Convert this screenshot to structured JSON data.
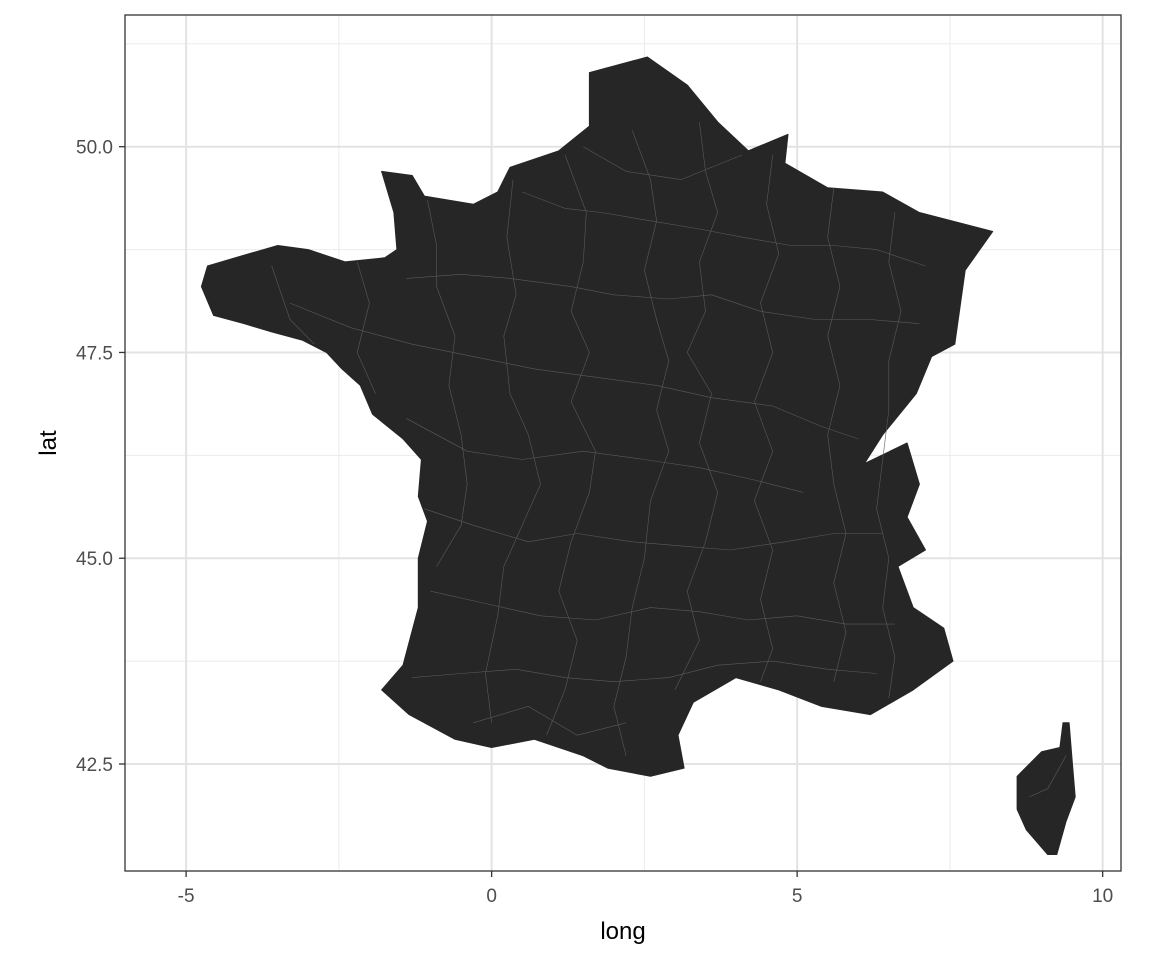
{
  "chart_data": {
    "type": "map",
    "region": "France (departments)",
    "xlabel": "long",
    "ylabel": "lat",
    "xlim": [
      -6.0,
      10.3
    ],
    "ylim": [
      41.2,
      51.6
    ],
    "x_ticks": [
      {
        "value": -5,
        "label": "-5"
      },
      {
        "value": 0,
        "label": "0"
      },
      {
        "value": 5,
        "label": "5"
      },
      {
        "value": 10,
        "label": "10"
      }
    ],
    "y_ticks": [
      {
        "value": 42.5,
        "label": "42.5"
      },
      {
        "value": 45.0,
        "label": "45.0"
      },
      {
        "value": 47.5,
        "label": "47.5"
      },
      {
        "value": 50.0,
        "label": "50.0"
      }
    ],
    "minor_x": [
      -2.5,
      2.5,
      7.5
    ],
    "minor_y": [
      43.75,
      46.25,
      48.75,
      51.25
    ],
    "grid": true,
    "fill_color": "#262626",
    "border_color": "#5a5a5a",
    "outline": [
      [
        2.55,
        51.09
      ],
      [
        3.2,
        50.75
      ],
      [
        3.7,
        50.3
      ],
      [
        4.2,
        49.95
      ],
      [
        4.85,
        50.15
      ],
      [
        4.8,
        49.8
      ],
      [
        5.5,
        49.5
      ],
      [
        6.4,
        49.45
      ],
      [
        7.0,
        49.2
      ],
      [
        8.2,
        48.97
      ],
      [
        7.75,
        48.5
      ],
      [
        7.58,
        47.6
      ],
      [
        7.2,
        47.45
      ],
      [
        6.95,
        47.0
      ],
      [
        6.4,
        46.5
      ],
      [
        6.1,
        46.15
      ],
      [
        6.8,
        46.4
      ],
      [
        7.0,
        45.9
      ],
      [
        6.8,
        45.5
      ],
      [
        7.1,
        45.1
      ],
      [
        6.65,
        44.9
      ],
      [
        6.9,
        44.4
      ],
      [
        7.4,
        44.15
      ],
      [
        7.55,
        43.75
      ],
      [
        6.9,
        43.4
      ],
      [
        6.2,
        43.1
      ],
      [
        5.4,
        43.2
      ],
      [
        4.7,
        43.4
      ],
      [
        4.0,
        43.55
      ],
      [
        3.3,
        43.25
      ],
      [
        3.05,
        42.85
      ],
      [
        3.15,
        42.45
      ],
      [
        2.6,
        42.35
      ],
      [
        1.9,
        42.45
      ],
      [
        1.5,
        42.6
      ],
      [
        0.7,
        42.8
      ],
      [
        0.0,
        42.7
      ],
      [
        -0.6,
        42.8
      ],
      [
        -1.35,
        43.1
      ],
      [
        -1.8,
        43.4
      ],
      [
        -1.45,
        43.7
      ],
      [
        -1.2,
        44.4
      ],
      [
        -1.2,
        45.0
      ],
      [
        -1.05,
        45.45
      ],
      [
        -1.2,
        45.75
      ],
      [
        -1.15,
        46.2
      ],
      [
        -1.45,
        46.45
      ],
      [
        -1.95,
        46.75
      ],
      [
        -2.15,
        47.1
      ],
      [
        -2.45,
        47.3
      ],
      [
        -2.7,
        47.5
      ],
      [
        -3.1,
        47.65
      ],
      [
        -3.6,
        47.75
      ],
      [
        -4.05,
        47.85
      ],
      [
        -4.55,
        47.95
      ],
      [
        -4.75,
        48.3
      ],
      [
        -4.65,
        48.55
      ],
      [
        -4.2,
        48.65
      ],
      [
        -3.5,
        48.8
      ],
      [
        -3.0,
        48.75
      ],
      [
        -2.4,
        48.6
      ],
      [
        -1.75,
        48.65
      ],
      [
        -1.55,
        48.75
      ],
      [
        -1.6,
        49.2
      ],
      [
        -1.8,
        49.7
      ],
      [
        -1.3,
        49.65
      ],
      [
        -1.1,
        49.4
      ],
      [
        -0.3,
        49.3
      ],
      [
        0.1,
        49.45
      ],
      [
        0.3,
        49.75
      ],
      [
        1.1,
        49.95
      ],
      [
        1.6,
        50.25
      ],
      [
        1.6,
        50.9
      ],
      [
        2.55,
        51.09
      ]
    ],
    "corsica": [
      [
        9.45,
        43.0
      ],
      [
        9.5,
        42.55
      ],
      [
        9.55,
        42.1
      ],
      [
        9.4,
        41.8
      ],
      [
        9.25,
        41.4
      ],
      [
        9.1,
        41.4
      ],
      [
        8.75,
        41.7
      ],
      [
        8.6,
        41.95
      ],
      [
        8.6,
        42.35
      ],
      [
        9.0,
        42.65
      ],
      [
        9.3,
        42.7
      ],
      [
        9.35,
        43.0
      ],
      [
        9.45,
        43.0
      ]
    ],
    "department_borders": [
      [
        [
          1.5,
          50.0
        ],
        [
          2.2,
          49.7
        ],
        [
          3.1,
          49.6
        ],
        [
          4.1,
          49.9
        ]
      ],
      [
        [
          0.5,
          49.45
        ],
        [
          1.2,
          49.25
        ],
        [
          1.8,
          49.2
        ],
        [
          2.6,
          49.1
        ],
        [
          3.4,
          49.0
        ],
        [
          4.1,
          48.9
        ],
        [
          4.9,
          48.8
        ],
        [
          5.6,
          48.8
        ],
        [
          6.3,
          48.75
        ],
        [
          7.1,
          48.55
        ]
      ],
      [
        [
          -1.4,
          48.4
        ],
        [
          -0.5,
          48.45
        ],
        [
          0.3,
          48.4
        ],
        [
          1.3,
          48.3
        ],
        [
          2.0,
          48.2
        ],
        [
          2.9,
          48.15
        ],
        [
          3.6,
          48.2
        ],
        [
          4.4,
          48.0
        ],
        [
          5.3,
          47.9
        ],
        [
          6.2,
          47.9
        ],
        [
          7.0,
          47.85
        ]
      ],
      [
        [
          -3.3,
          48.1
        ],
        [
          -2.3,
          47.8
        ],
        [
          -1.3,
          47.6
        ],
        [
          -0.3,
          47.45
        ],
        [
          0.7,
          47.3
        ],
        [
          1.7,
          47.2
        ],
        [
          2.7,
          47.1
        ],
        [
          3.6,
          46.95
        ],
        [
          4.6,
          46.85
        ],
        [
          5.4,
          46.6
        ],
        [
          6.0,
          46.45
        ]
      ],
      [
        [
          -1.4,
          46.7
        ],
        [
          -0.4,
          46.3
        ],
        [
          0.5,
          46.2
        ],
        [
          1.5,
          46.3
        ],
        [
          2.5,
          46.2
        ],
        [
          3.4,
          46.1
        ],
        [
          4.3,
          45.95
        ],
        [
          5.1,
          45.8
        ]
      ],
      [
        [
          -1.1,
          45.6
        ],
        [
          -0.3,
          45.4
        ],
        [
          0.6,
          45.2
        ],
        [
          1.4,
          45.3
        ],
        [
          2.3,
          45.2
        ],
        [
          3.1,
          45.15
        ],
        [
          3.9,
          45.1
        ],
        [
          4.8,
          45.2
        ],
        [
          5.6,
          45.3
        ],
        [
          6.4,
          45.3
        ]
      ],
      [
        [
          -1.0,
          44.6
        ],
        [
          -0.1,
          44.45
        ],
        [
          0.8,
          44.3
        ],
        [
          1.7,
          44.25
        ],
        [
          2.6,
          44.4
        ],
        [
          3.4,
          44.35
        ],
        [
          4.2,
          44.25
        ],
        [
          5.0,
          44.3
        ],
        [
          5.8,
          44.2
        ],
        [
          6.6,
          44.2
        ]
      ],
      [
        [
          -1.3,
          43.55
        ],
        [
          -0.5,
          43.6
        ],
        [
          0.4,
          43.65
        ],
        [
          1.2,
          43.55
        ],
        [
          2.0,
          43.5
        ],
        [
          2.9,
          43.55
        ],
        [
          3.7,
          43.7
        ],
        [
          4.6,
          43.75
        ],
        [
          5.5,
          43.65
        ],
        [
          6.3,
          43.6
        ]
      ],
      [
        [
          -0.3,
          43.0
        ],
        [
          0.6,
          43.2
        ],
        [
          1.4,
          42.85
        ],
        [
          2.2,
          43.0
        ]
      ],
      [
        [
          -3.6,
          48.55
        ],
        [
          -3.3,
          47.9
        ],
        [
          -2.9,
          47.6
        ]
      ],
      [
        [
          -2.2,
          48.6
        ],
        [
          -2.0,
          48.1
        ],
        [
          -2.2,
          47.5
        ],
        [
          -1.9,
          47.0
        ]
      ],
      [
        [
          -1.05,
          49.35
        ],
        [
          -0.9,
          48.8
        ],
        [
          -0.9,
          48.3
        ],
        [
          -0.6,
          47.7
        ],
        [
          -0.7,
          47.1
        ],
        [
          -0.5,
          46.5
        ],
        [
          -0.4,
          45.9
        ],
        [
          -0.5,
          45.4
        ],
        [
          -0.9,
          44.9
        ]
      ],
      [
        [
          0.35,
          49.6
        ],
        [
          0.25,
          48.9
        ],
        [
          0.4,
          48.2
        ],
        [
          0.2,
          47.7
        ],
        [
          0.3,
          47.0
        ],
        [
          0.6,
          46.5
        ],
        [
          0.8,
          45.9
        ],
        [
          0.5,
          45.4
        ],
        [
          0.2,
          44.9
        ],
        [
          0.1,
          44.3
        ],
        [
          -0.1,
          43.6
        ],
        [
          0.0,
          43.0
        ]
      ],
      [
        [
          1.2,
          49.9
        ],
        [
          1.55,
          49.2
        ],
        [
          1.5,
          48.6
        ],
        [
          1.3,
          48.0
        ],
        [
          1.6,
          47.5
        ],
        [
          1.3,
          46.9
        ],
        [
          1.7,
          46.3
        ],
        [
          1.6,
          45.8
        ],
        [
          1.3,
          45.2
        ],
        [
          1.1,
          44.6
        ],
        [
          1.4,
          44.0
        ],
        [
          1.2,
          43.4
        ],
        [
          0.9,
          42.85
        ]
      ],
      [
        [
          2.3,
          50.2
        ],
        [
          2.6,
          49.6
        ],
        [
          2.7,
          49.1
        ],
        [
          2.5,
          48.5
        ],
        [
          2.7,
          47.9
        ],
        [
          2.9,
          47.4
        ],
        [
          2.7,
          46.8
        ],
        [
          2.9,
          46.3
        ],
        [
          2.6,
          45.7
        ],
        [
          2.5,
          45.0
        ],
        [
          2.3,
          44.4
        ],
        [
          2.2,
          43.8
        ],
        [
          2.0,
          43.2
        ],
        [
          2.2,
          42.6
        ]
      ],
      [
        [
          3.4,
          50.3
        ],
        [
          3.5,
          49.7
        ],
        [
          3.7,
          49.2
        ],
        [
          3.4,
          48.6
        ],
        [
          3.5,
          48.0
        ],
        [
          3.2,
          47.5
        ],
        [
          3.6,
          47.0
        ],
        [
          3.4,
          46.4
        ],
        [
          3.7,
          45.8
        ],
        [
          3.5,
          45.2
        ],
        [
          3.2,
          44.6
        ],
        [
          3.4,
          44.0
        ],
        [
          3.0,
          43.4
        ]
      ],
      [
        [
          4.6,
          49.9
        ],
        [
          4.5,
          49.3
        ],
        [
          4.7,
          48.7
        ],
        [
          4.4,
          48.1
        ],
        [
          4.6,
          47.5
        ],
        [
          4.3,
          46.9
        ],
        [
          4.6,
          46.3
        ],
        [
          4.3,
          45.7
        ],
        [
          4.6,
          45.1
        ],
        [
          4.4,
          44.5
        ],
        [
          4.6,
          43.9
        ],
        [
          4.4,
          43.5
        ]
      ],
      [
        [
          5.6,
          49.5
        ],
        [
          5.5,
          48.9
        ],
        [
          5.7,
          48.3
        ],
        [
          5.5,
          47.7
        ],
        [
          5.7,
          47.1
        ],
        [
          5.5,
          46.5
        ],
        [
          5.6,
          45.9
        ],
        [
          5.8,
          45.3
        ],
        [
          5.6,
          44.7
        ],
        [
          5.8,
          44.1
        ],
        [
          5.6,
          43.5
        ]
      ],
      [
        [
          6.6,
          49.2
        ],
        [
          6.5,
          48.6
        ],
        [
          6.7,
          48.0
        ],
        [
          6.5,
          47.4
        ],
        [
          6.5,
          46.8
        ],
        [
          6.4,
          46.2
        ],
        [
          6.3,
          45.6
        ],
        [
          6.5,
          45.0
        ],
        [
          6.4,
          44.4
        ],
        [
          6.6,
          43.8
        ],
        [
          6.5,
          43.3
        ]
      ],
      [
        [
          9.4,
          42.6
        ],
        [
          9.1,
          42.2
        ],
        [
          8.8,
          42.1
        ]
      ]
    ]
  }
}
